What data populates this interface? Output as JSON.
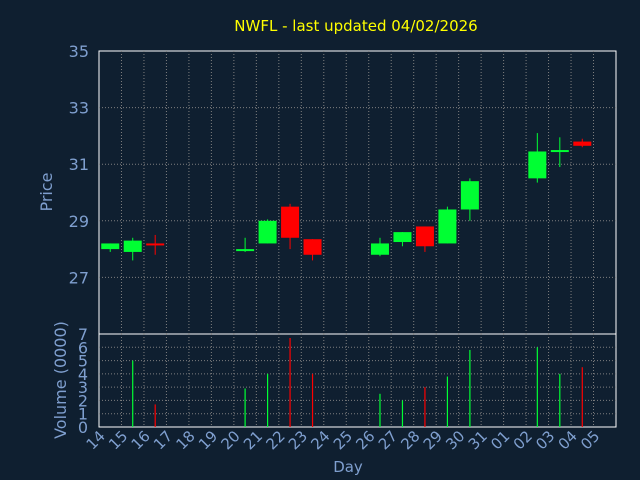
{
  "title": "NWFL - last updated 04/02/2026",
  "colors": {
    "background": "#0f1f30",
    "plot_background": "#ffffff",
    "grid": "#7f7f7f",
    "up": "#00ff33",
    "down": "#ff0000",
    "title": "#ffff00",
    "axis_text": "#7f9fcf"
  },
  "chart_data": [
    {
      "type": "candlestick",
      "ylabel": "Price",
      "ylim": [
        25,
        35
      ],
      "yticks": [
        "27",
        "29",
        "31",
        "33",
        "35"
      ],
      "grid": true,
      "categories": [
        "14",
        "15",
        "16",
        "17",
        "18",
        "19",
        "20",
        "21",
        "22",
        "23",
        "24",
        "25",
        "26",
        "27",
        "28",
        "29",
        "30",
        "31",
        "01",
        "02",
        "03",
        "04",
        "05"
      ],
      "ohlc": [
        {
          "day": "14",
          "open": 28.0,
          "high": 28.2,
          "low": 27.9,
          "close": 28.2
        },
        {
          "day": "15",
          "open": 27.9,
          "high": 28.4,
          "low": 27.6,
          "close": 28.3
        },
        {
          "day": "16",
          "open": 28.2,
          "high": 28.5,
          "low": 27.8,
          "close": 28.15
        },
        {
          "day": "20",
          "open": 27.95,
          "high": 28.4,
          "low": 27.9,
          "close": 28.0
        },
        {
          "day": "21",
          "open": 28.2,
          "high": 29.05,
          "low": 28.2,
          "close": 29.0
        },
        {
          "day": "22",
          "open": 29.5,
          "high": 29.6,
          "low": 28.0,
          "close": 28.4
        },
        {
          "day": "23",
          "open": 28.35,
          "high": 28.35,
          "low": 27.6,
          "close": 27.8
        },
        {
          "day": "26",
          "open": 27.8,
          "high": 28.4,
          "low": 27.75,
          "close": 28.2
        },
        {
          "day": "27",
          "open": 28.25,
          "high": 28.6,
          "low": 28.1,
          "close": 28.6
        },
        {
          "day": "28",
          "open": 28.8,
          "high": 28.8,
          "low": 27.9,
          "close": 28.1
        },
        {
          "day": "29",
          "open": 28.2,
          "high": 29.5,
          "low": 28.2,
          "close": 29.4
        },
        {
          "day": "30",
          "open": 29.4,
          "high": 30.5,
          "low": 29.0,
          "close": 30.4
        },
        {
          "day": "02",
          "open": 30.5,
          "high": 32.1,
          "low": 30.35,
          "close": 31.45
        },
        {
          "day": "03",
          "open": 31.45,
          "high": 31.95,
          "low": 30.9,
          "close": 31.5
        },
        {
          "day": "04",
          "open": 31.8,
          "high": 31.9,
          "low": 31.6,
          "close": 31.65
        }
      ]
    },
    {
      "type": "bar",
      "ylabel": "Volume (0000)",
      "xlabel": "Day",
      "ylim": [
        0,
        7
      ],
      "yticks": [
        "0",
        "1",
        "2",
        "3",
        "4",
        "5",
        "6",
        "7"
      ],
      "grid": true,
      "values": [
        {
          "day": "15",
          "volume": 5.0,
          "direction": "up"
        },
        {
          "day": "16",
          "volume": 1.7,
          "direction": "down"
        },
        {
          "day": "20",
          "volume": 2.9,
          "direction": "up"
        },
        {
          "day": "21",
          "volume": 4.0,
          "direction": "up"
        },
        {
          "day": "22",
          "volume": 6.7,
          "direction": "down"
        },
        {
          "day": "23",
          "volume": 4.0,
          "direction": "down"
        },
        {
          "day": "26",
          "volume": 2.5,
          "direction": "up"
        },
        {
          "day": "27",
          "volume": 2.0,
          "direction": "up"
        },
        {
          "day": "28",
          "volume": 3.0,
          "direction": "down"
        },
        {
          "day": "29",
          "volume": 3.8,
          "direction": "up"
        },
        {
          "day": "30",
          "volume": 5.8,
          "direction": "up"
        },
        {
          "day": "02",
          "volume": 6.0,
          "direction": "up"
        },
        {
          "day": "03",
          "volume": 4.0,
          "direction": "up"
        },
        {
          "day": "04",
          "volume": 4.5,
          "direction": "down"
        }
      ]
    }
  ]
}
